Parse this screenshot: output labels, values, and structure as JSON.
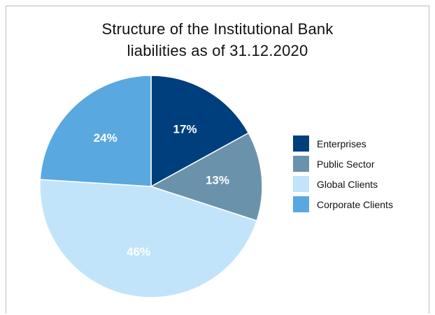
{
  "chart_data": {
    "type": "pie",
    "title_lines": [
      "Structure of the Institutional Bank",
      "liabilities as of 31.12.2020"
    ],
    "categories": [
      "Enterprises",
      "Public Sector",
      "Global Clients",
      "Corporate Clients"
    ],
    "values": [
      17,
      13,
      46,
      24
    ],
    "labels": [
      "17%",
      "13%",
      "46%",
      "24%"
    ],
    "colors": [
      "#003f7d",
      "#6a93ab",
      "#c1e4fa",
      "#59a8e0"
    ],
    "start_angle_deg": 0,
    "direction": "clockwise",
    "legend_position": "right"
  }
}
